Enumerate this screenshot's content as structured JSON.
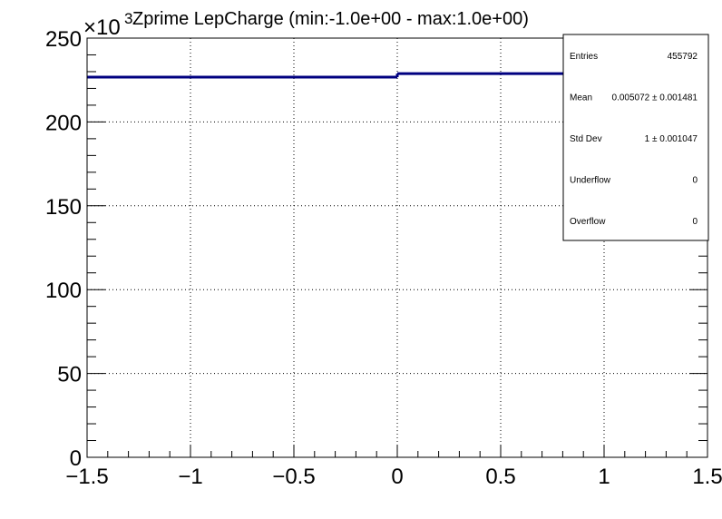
{
  "chart_data": {
    "type": "histogram",
    "title": "Zprime LepCharge (min:-1.0e+00 - max:1.0e+00)",
    "xlabel": "",
    "ylabel": "",
    "xlim": [
      -1.5,
      1.5
    ],
    "ylim": [
      0,
      250000
    ],
    "y_multiplier_label": "×10",
    "y_multiplier_exponent": "3",
    "x_ticks": [
      {
        "value": -1.5,
        "label": "−1.5"
      },
      {
        "value": -1.0,
        "label": "−1"
      },
      {
        "value": -0.5,
        "label": "−0.5"
      },
      {
        "value": 0.0,
        "label": "0"
      },
      {
        "value": 0.5,
        "label": "0.5"
      },
      {
        "value": 1.0,
        "label": "1"
      },
      {
        "value": 1.5,
        "label": "1.5"
      }
    ],
    "y_ticks": [
      {
        "value": 0,
        "label": "0"
      },
      {
        "value": 50000,
        "label": "50"
      },
      {
        "value": 100000,
        "label": "100"
      },
      {
        "value": 150000,
        "label": "150"
      },
      {
        "value": 200000,
        "label": "200"
      },
      {
        "value": 250000,
        "label": "250"
      }
    ],
    "bins": [
      {
        "x_low": -1.5,
        "x_high": 0.0,
        "value": 226700
      },
      {
        "x_low": 0.0,
        "x_high": 1.5,
        "value": 228800
      }
    ],
    "grid": true,
    "line_color": "#000080",
    "stats_box": {
      "placement": "top-right",
      "rows": [
        {
          "label": "Entries",
          "value": "455792"
        },
        {
          "label": "Mean",
          "value": "0.005072  ± 0.001481"
        },
        {
          "label": "Std Dev",
          "value": "1 ± 0.001047"
        },
        {
          "label": "Underflow",
          "value": "0"
        },
        {
          "label": "Overflow",
          "value": "0"
        }
      ]
    }
  }
}
